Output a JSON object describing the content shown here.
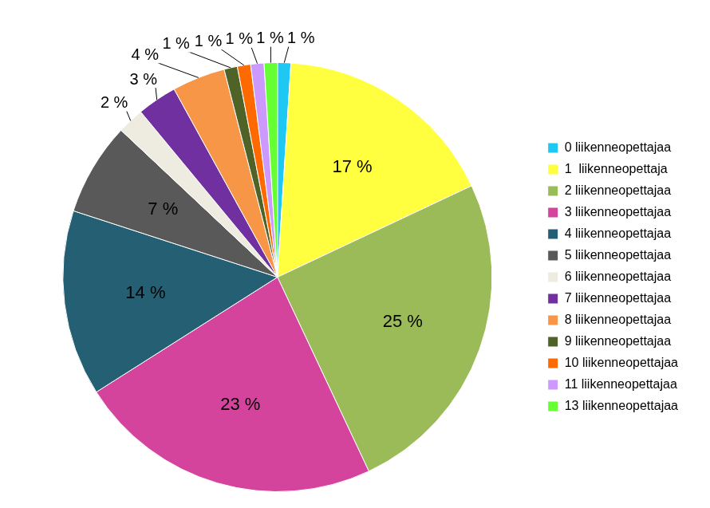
{
  "chart_data": {
    "type": "pie",
    "categories": [
      "0 liikenneopettajaa",
      "1  liikenneopettaja",
      "2 liikenneopettajaa",
      "3 liikenneopettajaa",
      "4 liikenneopettajaa",
      "5 liikenneopettajaa",
      "6 liikenneopettajaa",
      "7 liikenneopettajaa",
      "8 liikenneopettajaa",
      "9 liikenneopettajaa",
      "10 liikenneopettajaa",
      "11 liikenneopettajaa",
      "13 liikenneopettajaa"
    ],
    "values": [
      1,
      17,
      25,
      23,
      14,
      7,
      2,
      3,
      4,
      1,
      1,
      1,
      1
    ],
    "value_labels": [
      "1 %",
      "17 %",
      "25 %",
      "23 %",
      "14 %",
      "7 %",
      "2 %",
      "3 %",
      "4 %",
      "1 %",
      "1 %",
      "1 %",
      "1 %"
    ],
    "colors": [
      "#1ec8f2",
      "#ffff3f",
      "#9bbb59",
      "#d4449c",
      "#245f73",
      "#595959",
      "#eeece1",
      "#7030a0",
      "#f79646",
      "#4f6228",
      "#ff6a00",
      "#cc99ff",
      "#66ff33"
    ],
    "legend": "right",
    "data_labels": true
  }
}
